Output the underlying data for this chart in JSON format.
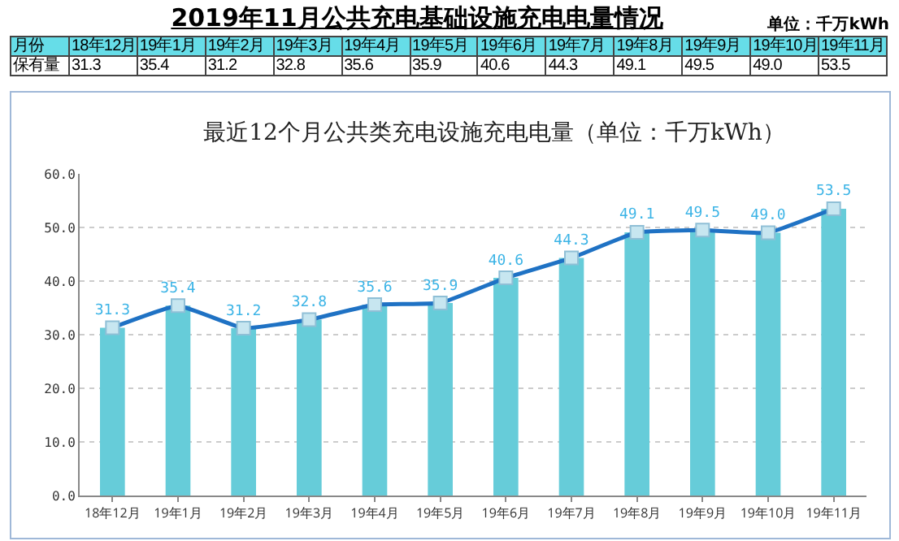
{
  "chart_data": {
    "type": "bar",
    "title": "2019年11月公共充电基础设施充电电量情况",
    "subtitle": "最近12个月公共类充电设施充电电量（单位：千万kWh）",
    "annotations": [
      "单位：千万kWh",
      "月份",
      "保有量"
    ],
    "categories": [
      "18年12月",
      "19年1月",
      "19年2月",
      "19年3月",
      "19年4月",
      "19年5月",
      "19年6月",
      "19年7月",
      "19年8月",
      "19年9月",
      "19年10月",
      "19年11月"
    ],
    "series": [
      {
        "color": "#66ccd9",
        "values": [
          31.3,
          35.4,
          31.2,
          32.8,
          35.6,
          35.9,
          40.6,
          44.3,
          49.1,
          49.5,
          49.0,
          53.5
        ]
      },
      {
        "type": "line",
        "color": "#1f72c4",
        "values": [
          31.3,
          35.4,
          31.2,
          32.8,
          35.6,
          35.9,
          40.6,
          44.3,
          49.1,
          49.5,
          49.0,
          53.5
        ],
        "value_labels": [
          "31.3",
          "35.4",
          "31.2",
          "32.8",
          "35.6",
          "35.9",
          "40.6",
          "44.3",
          "49.1",
          "49.5",
          "49.0",
          "53.5"
        ]
      }
    ],
    "marker": "square",
    "grid": "y",
    "ylim": [
      0,
      60
    ],
    "yticks": [
      {
        "value": 0,
        "label": "0.0"
      },
      {
        "value": 10,
        "label": "10.0"
      },
      {
        "value": 20,
        "label": "20.0"
      },
      {
        "value": 30,
        "label": "30.0"
      },
      {
        "value": 40,
        "label": "40.0"
      },
      {
        "value": 50,
        "label": "50.0"
      },
      {
        "value": 60,
        "label": "60.0"
      }
    ]
  }
}
